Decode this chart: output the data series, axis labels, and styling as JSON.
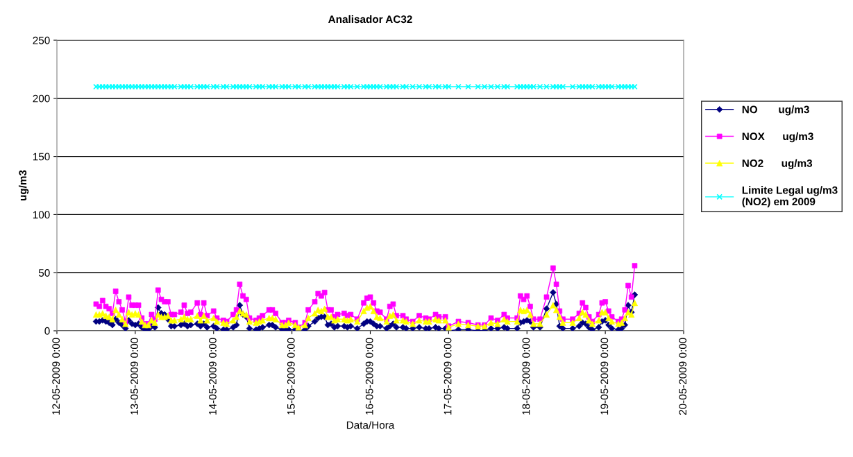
{
  "chart_data": {
    "type": "line",
    "title": "Analisador AC32",
    "xlabel": "Data/Hora",
    "ylabel": "ug/m3",
    "x": [
      "2009-05-12T12:00",
      "2009-05-12T13:00",
      "2009-05-12T14:00",
      "2009-05-12T15:00",
      "2009-05-12T16:00",
      "2009-05-12T17:00",
      "2009-05-12T18:00",
      "2009-05-12T19:00",
      "2009-05-12T20:00",
      "2009-05-12T21:00",
      "2009-05-12T22:00",
      "2009-05-12T23:00",
      "2009-05-13T00:00",
      "2009-05-13T01:00",
      "2009-05-13T02:00",
      "2009-05-13T03:00",
      "2009-05-13T04:00",
      "2009-05-13T05:00",
      "2009-05-13T06:00",
      "2009-05-13T07:00",
      "2009-05-13T08:00",
      "2009-05-13T09:00",
      "2009-05-13T10:00",
      "2009-05-13T11:00",
      "2009-05-13T12:00",
      "2009-05-13T14:00",
      "2009-05-13T15:00",
      "2009-05-13T16:00",
      "2009-05-13T17:00",
      "2009-05-13T19:00",
      "2009-05-13T20:00",
      "2009-05-13T21:00",
      "2009-05-13T22:00",
      "2009-05-14T00:00",
      "2009-05-14T01:00",
      "2009-05-14T03:00",
      "2009-05-14T04:00",
      "2009-05-14T06:00",
      "2009-05-14T07:00",
      "2009-05-14T08:00",
      "2009-05-14T09:00",
      "2009-05-14T10:00",
      "2009-05-14T11:00",
      "2009-05-14T13:00",
      "2009-05-14T14:00",
      "2009-05-14T15:00",
      "2009-05-14T17:00",
      "2009-05-14T18:00",
      "2009-05-14T19:00",
      "2009-05-14T21:00",
      "2009-05-14T22:00",
      "2009-05-14T23:00",
      "2009-05-15T01:00",
      "2009-05-15T02:00",
      "2009-05-15T04:00",
      "2009-05-15T05:00",
      "2009-05-15T07:00",
      "2009-05-15T08:00",
      "2009-05-15T09:00",
      "2009-05-15T10:00",
      "2009-05-15T11:00",
      "2009-05-15T12:00",
      "2009-05-15T13:00",
      "2009-05-15T14:00",
      "2009-05-15T16:00",
      "2009-05-15T17:00",
      "2009-05-15T18:00",
      "2009-05-15T20:00",
      "2009-05-15T22:00",
      "2009-05-15T23:00",
      "2009-05-16T00:00",
      "2009-05-16T01:00",
      "2009-05-16T02:00",
      "2009-05-16T03:00",
      "2009-05-16T05:00",
      "2009-05-16T06:00",
      "2009-05-16T07:00",
      "2009-05-16T08:00",
      "2009-05-16T10:00",
      "2009-05-16T11:00",
      "2009-05-16T13:00",
      "2009-05-16T15:00",
      "2009-05-16T17:00",
      "2009-05-16T18:00",
      "2009-05-16T20:00",
      "2009-05-16T21:00",
      "2009-05-16T23:00",
      "2009-05-17T00:00",
      "2009-05-17T03:00",
      "2009-05-17T06:00",
      "2009-05-17T09:00",
      "2009-05-17T11:00",
      "2009-05-17T13:00",
      "2009-05-17T15:00",
      "2009-05-17T17:00",
      "2009-05-17T18:00",
      "2009-05-17T21:00",
      "2009-05-17T22:00",
      "2009-05-17T23:00",
      "2009-05-18T00:00",
      "2009-05-18T01:00",
      "2009-05-18T02:00",
      "2009-05-18T04:00",
      "2009-05-18T06:00",
      "2009-05-18T08:00",
      "2009-05-18T09:00",
      "2009-05-18T10:00",
      "2009-05-18T11:00",
      "2009-05-18T14:00",
      "2009-05-18T16:00",
      "2009-05-18T17:00",
      "2009-05-18T18:00",
      "2009-05-18T19:00",
      "2009-05-18T20:00",
      "2009-05-18T22:00",
      "2009-05-18T23:00",
      "2009-05-19T00:00",
      "2009-05-19T01:00",
      "2009-05-19T02:00",
      "2009-05-19T04:00",
      "2009-05-19T05:00",
      "2009-05-19T06:00",
      "2009-05-19T07:00",
      "2009-05-19T08:00",
      "2009-05-19T09:00"
    ],
    "series": [
      {
        "name": "NO       ug/m3",
        "color": "#000080",
        "marker": "diamond",
        "values": [
          8,
          8,
          9,
          8,
          7,
          5,
          10,
          7,
          5,
          2,
          9,
          6,
          5,
          6,
          3,
          1,
          1,
          4,
          3,
          20,
          15,
          14,
          10,
          4,
          4,
          5,
          6,
          4,
          5,
          6,
          4,
          6,
          3,
          4,
          2,
          1,
          1,
          3,
          5,
          22,
          14,
          12,
          2,
          1,
          2,
          3,
          5,
          5,
          3,
          1,
          1,
          1,
          1,
          0,
          1,
          4,
          8,
          11,
          12,
          12,
          5,
          6,
          3,
          4,
          4,
          3,
          4,
          2,
          6,
          8,
          8,
          6,
          4,
          4,
          2,
          4,
          6,
          3,
          3,
          2,
          2,
          3,
          2,
          2,
          3,
          2,
          2,
          0,
          1,
          1,
          0,
          0,
          2,
          2,
          3,
          2,
          2,
          7,
          8,
          9,
          8,
          3,
          3,
          19,
          33,
          23,
          4,
          2,
          2,
          4,
          7,
          6,
          3,
          1,
          3,
          8,
          9,
          5,
          2,
          1,
          2,
          5,
          22,
          16,
          31
        ]
      },
      {
        "name": "NOX      ug/m3",
        "color": "#ff00ff",
        "marker": "square",
        "values": [
          23,
          21,
          26,
          21,
          19,
          15,
          34,
          25,
          18,
          8,
          29,
          22,
          22,
          22,
          11,
          6,
          6,
          14,
          10,
          35,
          27,
          25,
          25,
          14,
          14,
          16,
          22,
          15,
          16,
          24,
          14,
          24,
          13,
          17,
          11,
          9,
          8,
          14,
          18,
          40,
          30,
          27,
          11,
          9,
          11,
          13,
          18,
          18,
          15,
          7,
          7,
          9,
          7,
          3,
          7,
          18,
          25,
          32,
          30,
          33,
          18,
          18,
          12,
          14,
          15,
          13,
          14,
          10,
          24,
          28,
          29,
          24,
          17,
          16,
          10,
          21,
          23,
          13,
          13,
          10,
          8,
          13,
          11,
          10,
          14,
          12,
          12,
          4,
          8,
          7,
          5,
          5,
          11,
          9,
          14,
          11,
          11,
          30,
          27,
          30,
          21,
          10,
          10,
          29,
          54,
          40,
          17,
          10,
          10,
          15,
          24,
          20,
          12,
          8,
          14,
          24,
          25,
          17,
          12,
          8,
          10,
          18,
          39,
          29,
          56
        ]
      },
      {
        "name": "NO2      ug/m3",
        "color": "#ffff00",
        "marker": "triangle",
        "values": [
          14,
          14,
          15,
          13,
          12,
          10,
          18,
          14,
          10,
          6,
          16,
          14,
          15,
          14,
          8,
          5,
          5,
          9,
          7,
          14,
          12,
          12,
          13,
          9,
          9,
          10,
          12,
          10,
          10,
          13,
          9,
          13,
          9,
          11,
          8,
          7,
          6,
          9,
          12,
          17,
          15,
          14,
          8,
          7,
          8,
          9,
          11,
          11,
          10,
          5,
          5,
          7,
          5,
          3,
          5,
          11,
          15,
          18,
          17,
          19,
          12,
          12,
          9,
          10,
          10,
          9,
          10,
          8,
          17,
          20,
          21,
          17,
          12,
          11,
          8,
          13,
          14,
          9,
          9,
          8,
          6,
          9,
          8,
          8,
          10,
          9,
          9,
          3,
          6,
          5,
          4,
          4,
          7,
          6,
          10,
          8,
          8,
          18,
          17,
          18,
          14,
          6,
          6,
          14,
          22,
          18,
          12,
          7,
          7,
          11,
          16,
          14,
          9,
          6,
          9,
          16,
          16,
          11,
          8,
          6,
          7,
          11,
          16,
          14,
          24
        ]
      },
      {
        "name": "Limite Legal ug/m3\n(NO2) em 2009",
        "color": "#00ffff",
        "marker": "cross",
        "values": [
          210,
          210,
          210,
          210,
          210,
          210,
          210,
          210,
          210,
          210,
          210,
          210,
          210,
          210,
          210,
          210,
          210,
          210,
          210,
          210,
          210,
          210,
          210,
          210,
          210,
          210,
          210,
          210,
          210,
          210,
          210,
          210,
          210,
          210,
          210,
          210,
          210,
          210,
          210,
          210,
          210,
          210,
          210,
          210,
          210,
          210,
          210,
          210,
          210,
          210,
          210,
          210,
          210,
          210,
          210,
          210,
          210,
          210,
          210,
          210,
          210,
          210,
          210,
          210,
          210,
          210,
          210,
          210,
          210,
          210,
          210,
          210,
          210,
          210,
          210,
          210,
          210,
          210,
          210,
          210,
          210,
          210,
          210,
          210,
          210,
          210,
          210,
          210,
          210,
          210,
          210,
          210,
          210,
          210,
          210,
          210,
          210,
          210,
          210,
          210,
          210,
          210,
          210,
          210,
          210,
          210,
          210,
          210,
          210,
          210,
          210,
          210,
          210,
          210,
          210,
          210,
          210,
          210,
          210,
          210,
          210,
          210,
          210,
          210,
          210
        ]
      }
    ],
    "xlim": [
      "2009-05-12",
      "2009-05-20"
    ],
    "xticks": [
      {
        "value": "2009-05-12",
        "label": "12-05-2009 0:00"
      },
      {
        "value": "2009-05-13",
        "label": "13-05-2009 0:00"
      },
      {
        "value": "2009-05-14",
        "label": "14-05-2009 0:00"
      },
      {
        "value": "2009-05-15",
        "label": "15-05-2009 0:00"
      },
      {
        "value": "2009-05-16",
        "label": "16-05-2009 0:00"
      },
      {
        "value": "2009-05-17",
        "label": "17-05-2009 0:00"
      },
      {
        "value": "2009-05-18",
        "label": "18-05-2009 0:00"
      },
      {
        "value": "2009-05-19",
        "label": "19-05-2009 0:00"
      },
      {
        "value": "2009-05-20",
        "label": "20-05-2009 0:00"
      }
    ],
    "ylim": [
      0,
      250
    ],
    "yticks": [
      0,
      50,
      100,
      150,
      200,
      250
    ],
    "grid": "y",
    "legend": "right",
    "line_style": "solid"
  }
}
